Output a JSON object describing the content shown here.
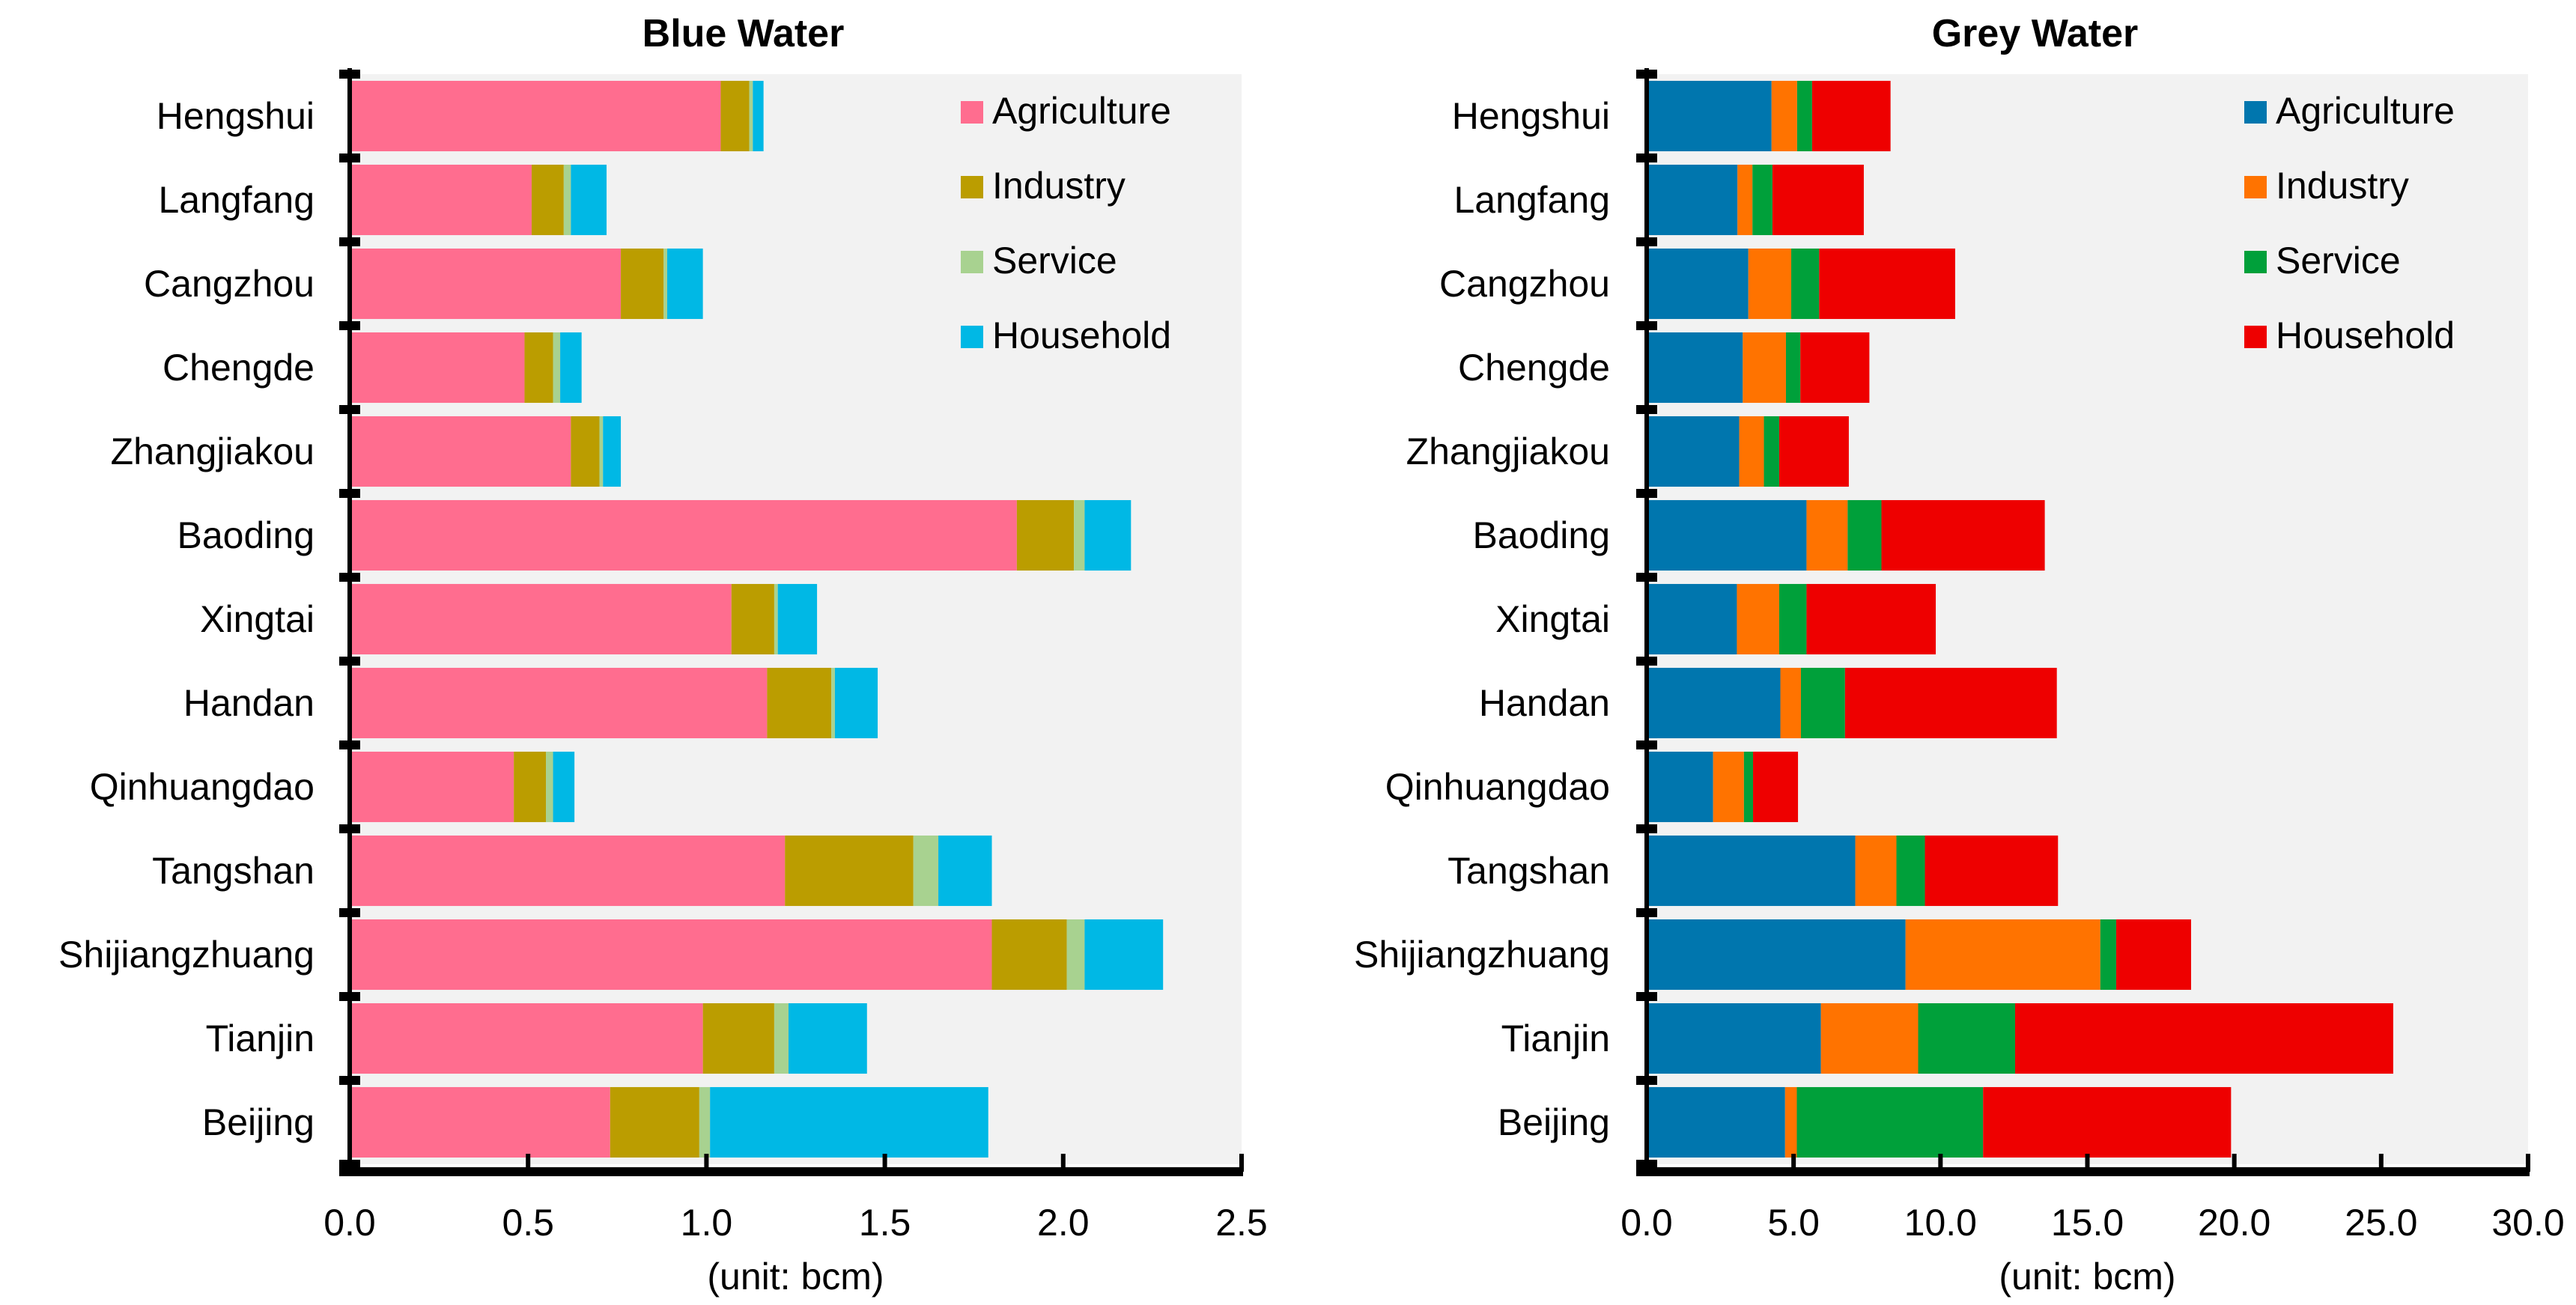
{
  "chart_data": [
    {
      "type": "bar",
      "orientation": "horizontal",
      "stacked": true,
      "title": "Blue Water",
      "xlabel": "(unit: bcm)",
      "ylabel": "",
      "xlim": [
        0,
        2.5
      ],
      "xticks": [
        "0.0",
        "0.5",
        "1.0",
        "1.5",
        "2.0",
        "2.5"
      ],
      "xtick_values": [
        0,
        0.5,
        1.0,
        1.5,
        2.0,
        2.5
      ],
      "grid": false,
      "legend_position": "top-right",
      "categories": [
        "Hengshui",
        "Langfang",
        "Cangzhou",
        "Chengde",
        "Zhangjiakou",
        "Baoding",
        "Xingtai",
        "Handan",
        "Qinhuangdao",
        "Tangshan",
        "Shijiangzhuang",
        "Tianjin",
        "Beijing"
      ],
      "series": [
        {
          "name": "Agriculture",
          "color": "#ff6d8f",
          "values": [
            1.04,
            0.51,
            0.76,
            0.49,
            0.62,
            1.87,
            1.07,
            1.17,
            0.46,
            1.22,
            1.8,
            0.99,
            0.73
          ]
        },
        {
          "name": "Industry",
          "color": "#bb9d00",
          "values": [
            0.08,
            0.09,
            0.12,
            0.08,
            0.08,
            0.16,
            0.12,
            0.18,
            0.09,
            0.36,
            0.21,
            0.2,
            0.25
          ]
        },
        {
          "name": "Service",
          "color": "#a8d290",
          "values": [
            0.01,
            0.02,
            0.01,
            0.02,
            0.01,
            0.03,
            0.01,
            0.01,
            0.02,
            0.07,
            0.05,
            0.04,
            0.03
          ]
        },
        {
          "name": "Household",
          "color": "#00b8e5",
          "values": [
            0.03,
            0.1,
            0.1,
            0.06,
            0.05,
            0.13,
            0.11,
            0.12,
            0.06,
            0.15,
            0.22,
            0.22,
            0.78
          ]
        }
      ]
    },
    {
      "type": "bar",
      "orientation": "horizontal",
      "stacked": true,
      "title": "Grey Water",
      "xlabel": "(unit: bcm)",
      "ylabel": "",
      "xlim": [
        0,
        30
      ],
      "xticks": [
        "0.0",
        "5.0",
        "10.0",
        "15.0",
        "20.0",
        "25.0",
        "30.0"
      ],
      "xtick_values": [
        0,
        5,
        10,
        15,
        20,
        25,
        30
      ],
      "grid": false,
      "legend_position": "top-right",
      "categories": [
        "Hengshui",
        "Langfang",
        "Cangzhou",
        "Chengde",
        "Zhangjiakou",
        "Baoding",
        "Xingtai",
        "Handan",
        "Qinhuangdao",
        "Tangshan",
        "Shijiangzhuang",
        "Tianjin",
        "Beijing"
      ],
      "series": [
        {
          "name": "Agriculture",
          "color": "#0076ae",
          "values": [
            4.25,
            3.09,
            3.46,
            3.27,
            3.15,
            5.44,
            3.07,
            4.55,
            2.26,
            7.1,
            8.81,
            5.93,
            4.71
          ]
        },
        {
          "name": "Industry",
          "color": "#ff7300",
          "values": [
            0.87,
            0.51,
            1.46,
            1.47,
            0.84,
            1.4,
            1.44,
            0.7,
            1.05,
            1.4,
            6.63,
            3.31,
            0.4
          ]
        },
        {
          "name": "Service",
          "color": "#00a03a",
          "values": [
            0.51,
            0.68,
            0.95,
            0.49,
            0.52,
            1.15,
            0.93,
            1.5,
            0.31,
            0.97,
            0.54,
            3.3,
            6.34
          ]
        },
        {
          "name": "Household",
          "color": "#ee0000",
          "values": [
            2.67,
            3.11,
            4.63,
            2.35,
            2.37,
            5.56,
            4.4,
            7.21,
            1.53,
            4.53,
            2.55,
            12.87,
            8.44
          ]
        }
      ]
    }
  ]
}
